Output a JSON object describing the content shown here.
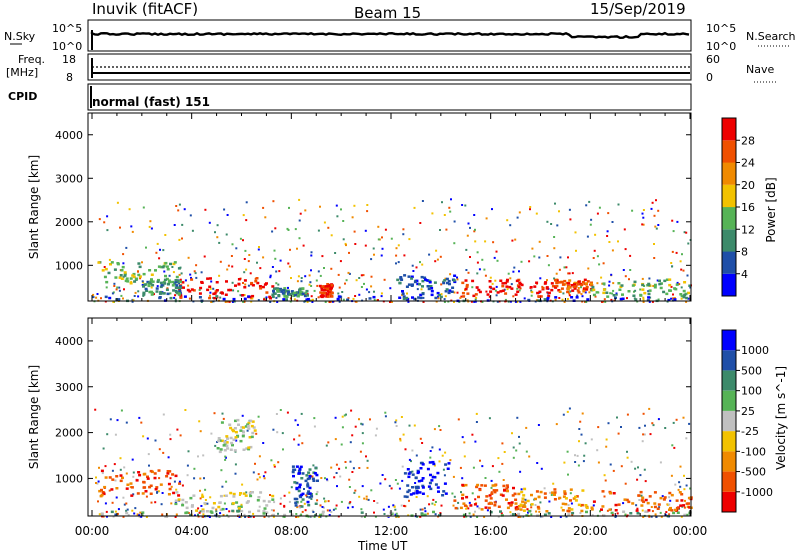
{
  "header": {
    "station": "Inuvik (fitACF)",
    "beam": "Beam 15",
    "date": "15/Sep/2019"
  },
  "strips": {
    "nsky_label": "N.Sky",
    "nsky_ticks": [
      "10^5",
      "10^0"
    ],
    "nsearch_label": "N.Search",
    "nsearch_ticks": [
      "10^5",
      "10^0"
    ],
    "freq_label": "Freq.",
    "freq_unit": "[MHz]",
    "freq_ticks": [
      "18",
      "8"
    ],
    "nave_label": "Nave",
    "nave_ticks": [
      "60",
      "0"
    ],
    "cpid_label": "CPID",
    "cpid_value": "normal (fast) 151"
  },
  "chart_data": [
    {
      "type": "heatmap",
      "name": "power",
      "ylabel": "Slant Range [km]",
      "xlabel": "Time UT",
      "x_ticks": [
        "00:00",
        "04:00",
        "08:00",
        "12:00",
        "16:00",
        "20:00",
        "00:00"
      ],
      "xlim_hours": [
        0,
        24
      ],
      "ylim_km": [
        180,
        4500
      ],
      "y_ticks": [
        1000,
        2000,
        3000,
        4000
      ],
      "colorbar_label": "Power [dB]",
      "colorbar_ticks": [
        "28",
        "24",
        "20",
        "16",
        "12",
        "8",
        "4"
      ],
      "colors": [
        "#0000ff",
        "#1f4fa8",
        "#3c8a6a",
        "#56b356",
        "#f2c200",
        "#f08a00",
        "#f05000",
        "#ee0000"
      ],
      "patches": [
        {
          "t0": 0.2,
          "t1": 3.5,
          "r0": 600,
          "r1": 1100,
          "v": 3
        },
        {
          "t0": 3.2,
          "t1": 7.2,
          "r0": 250,
          "r1": 750,
          "v": 7
        },
        {
          "t0": 2.0,
          "t1": 3.5,
          "r0": 350,
          "r1": 700,
          "v": 2
        },
        {
          "t0": 7.2,
          "t1": 8.6,
          "r0": 300,
          "r1": 500,
          "v": 2
        },
        {
          "t0": 9.1,
          "t1": 9.6,
          "r0": 300,
          "r1": 600,
          "v": 7
        },
        {
          "t0": 12.2,
          "t1": 14.5,
          "r0": 300,
          "r1": 800,
          "v": 1
        },
        {
          "t0": 14.8,
          "t1": 18.5,
          "r0": 300,
          "r1": 700,
          "v": 7
        },
        {
          "t0": 18.5,
          "t1": 20.0,
          "r0": 400,
          "r1": 700,
          "v": 6
        },
        {
          "t0": 20.0,
          "t1": 24.0,
          "r0": 300,
          "r1": 700,
          "v": 3
        },
        {
          "t0": 0.0,
          "t1": 24.0,
          "r0": 200,
          "r1": 320,
          "v": 1
        }
      ]
    },
    {
      "type": "heatmap",
      "name": "velocity",
      "ylabel": "Slant Range [km]",
      "xlabel": "Time UT",
      "x_ticks": [
        "00:00",
        "04:00",
        "08:00",
        "12:00",
        "16:00",
        "20:00",
        "00:00"
      ],
      "xlim_hours": [
        0,
        24
      ],
      "ylim_km": [
        180,
        4500
      ],
      "y_ticks": [
        1000,
        2000,
        3000,
        4000
      ],
      "colorbar_label": "Velocity [m s^-1]",
      "colorbar_ticks": [
        "1000",
        "500",
        "100",
        "25",
        "-25",
        "-100",
        "-500",
        "-1000"
      ],
      "colors": [
        "#ee0000",
        "#f05000",
        "#f08a00",
        "#f2c200",
        "#c0c0c0",
        "#56b356",
        "#3c8a6a",
        "#1f4fa8",
        "#0000ff"
      ],
      "patches": [
        {
          "t0": 0.2,
          "t1": 3.5,
          "r0": 600,
          "r1": 1200,
          "v": 1
        },
        {
          "t0": 3.3,
          "t1": 7.2,
          "r0": 250,
          "r1": 750,
          "v": 4
        },
        {
          "t0": 5.0,
          "t1": 6.5,
          "r0": 1600,
          "r1": 2300,
          "v": 4
        },
        {
          "t0": 8.0,
          "t1": 9.0,
          "r0": 400,
          "r1": 1300,
          "v": 7
        },
        {
          "t0": 12.5,
          "t1": 14.3,
          "r0": 600,
          "r1": 1400,
          "v": 8
        },
        {
          "t0": 14.5,
          "t1": 17.0,
          "r0": 350,
          "r1": 900,
          "v": 1
        },
        {
          "t0": 17.0,
          "t1": 20.0,
          "r0": 300,
          "r1": 800,
          "v": 2
        },
        {
          "t0": 20.0,
          "t1": 24.0,
          "r0": 300,
          "r1": 750,
          "v": 1
        },
        {
          "t0": 0.0,
          "t1": 24.0,
          "r0": 200,
          "r1": 320,
          "v": 5
        }
      ]
    }
  ]
}
